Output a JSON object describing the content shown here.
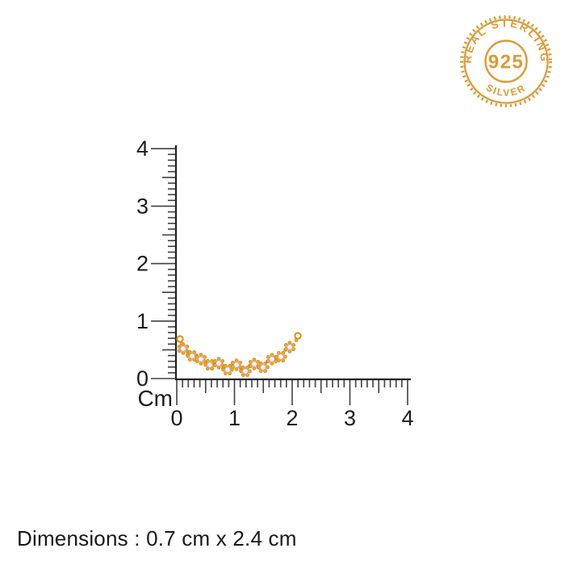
{
  "badge": {
    "top_text": "REAL STERLING",
    "center_text": "925",
    "bottom_text": "SILVER",
    "color": "#DC9A36"
  },
  "ruler": {
    "unit_label": "Cm",
    "vertical_labels": [
      "0",
      "1",
      "2",
      "3",
      "4"
    ],
    "horizontal_labels": [
      "0",
      "1",
      "2",
      "3",
      "4"
    ],
    "minor_ticks_per_unit": 10,
    "tick_color": "#404040",
    "line_color": "#222222"
  },
  "product": {
    "description": "gold-flower-cluster-curved-bar-with-cz-stones",
    "gold_color": "#F0A42E",
    "gold_dark": "#C77E12",
    "stone_color": "#F4F0F6",
    "stone_edge": "#BFB4C8",
    "clusters": [
      [
        227,
        432
      ],
      [
        238,
        441
      ],
      [
        249,
        445
      ],
      [
        260,
        452
      ],
      [
        271,
        450
      ],
      [
        282,
        458
      ],
      [
        293,
        452
      ],
      [
        304,
        460
      ],
      [
        315,
        451
      ],
      [
        326,
        455
      ],
      [
        337,
        445
      ],
      [
        348,
        442
      ],
      [
        359,
        430
      ]
    ],
    "end_loops": [
      [
        223,
        420
      ],
      [
        369,
        416
      ]
    ]
  },
  "footer": {
    "dimensions_text": "Dimensions : 0.7 cm x 2.4 cm"
  }
}
